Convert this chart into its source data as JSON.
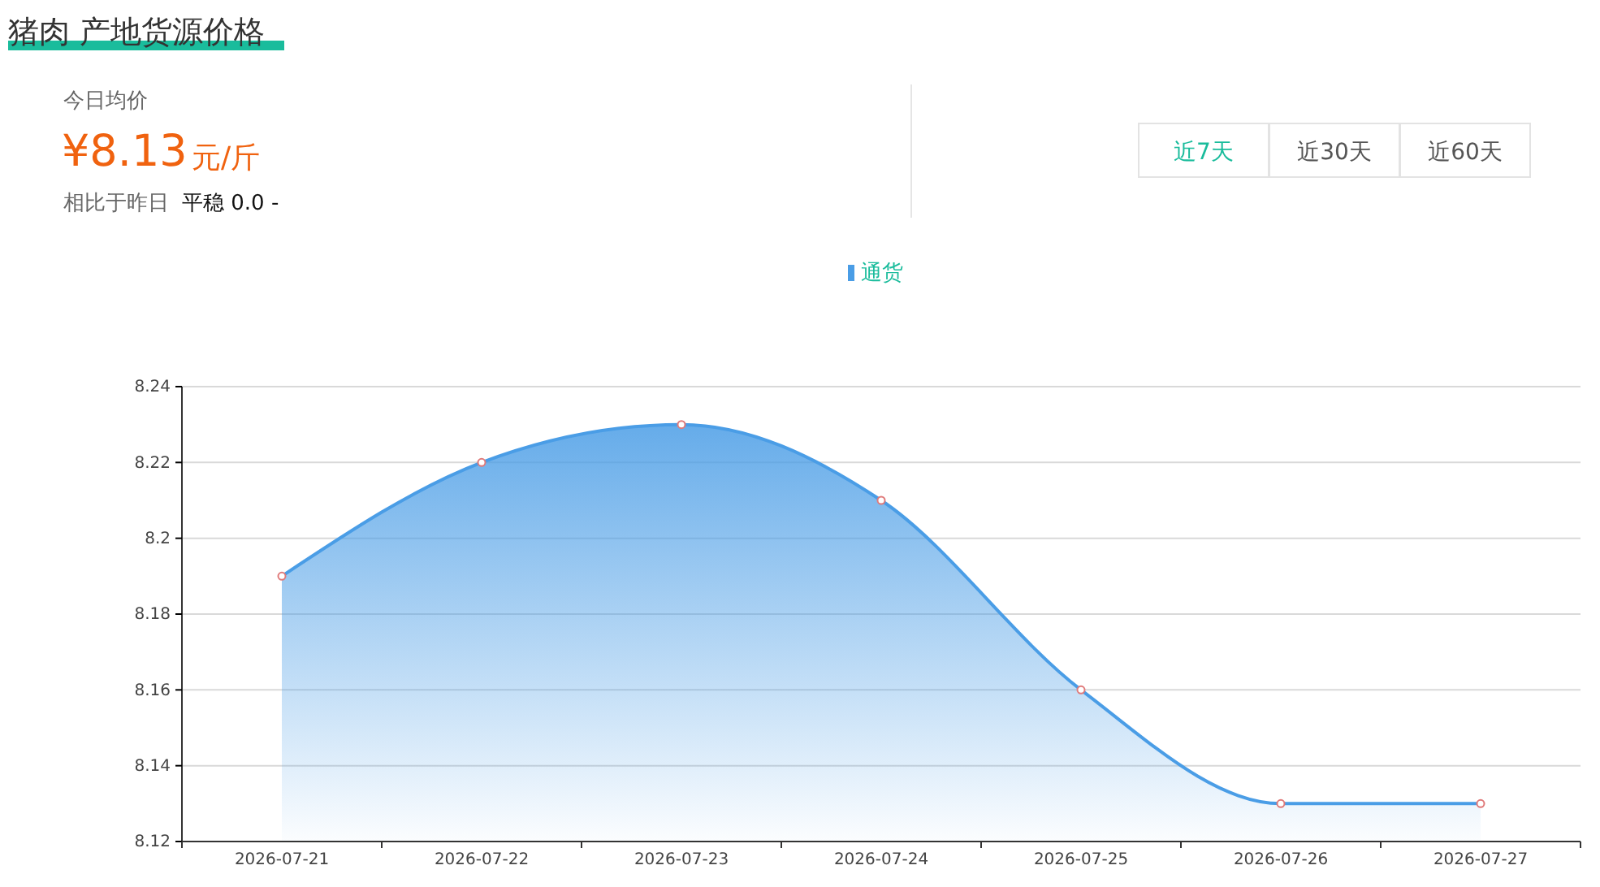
{
  "chart_data": {
    "type": "area",
    "title": "猪肉 产地货源价格",
    "annotations": [
      "今日均价",
      "¥8.13",
      "元/斤",
      "相比于昨日",
      "平稳 0.0 -",
      "近7天",
      "近30天",
      "近60天"
    ],
    "categories": [
      "2026-07-21",
      "2026-07-22",
      "2026-07-23",
      "2026-07-24",
      "2026-07-25",
      "2026-07-26",
      "2026-07-27"
    ],
    "series": [
      {
        "name": "通货",
        "color": "#4a9de6",
        "values": [
          8.19,
          8.22,
          8.23,
          8.21,
          8.16,
          8.13,
          8.13
        ]
      }
    ],
    "ylim": [
      8.12,
      8.24
    ],
    "yticks": [
      8.12,
      8.14,
      8.16,
      8.18,
      {
        "value": 8.2,
        "label": "8.2"
      },
      8.22,
      8.24
    ],
    "grid": "y",
    "legend": "top",
    "marker": "circle",
    "line_style": "solid"
  }
}
